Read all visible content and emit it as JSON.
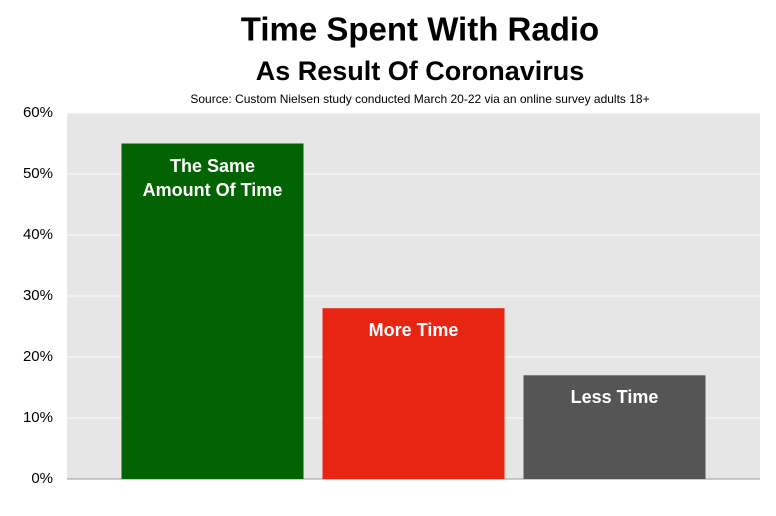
{
  "chart_data": {
    "type": "bar",
    "title": "Time Spent With Radio",
    "subtitle": "As Result Of Coronavirus",
    "source": "Source: Custom Nielsen study conducted March 20-22 via an online survey adults 18+",
    "categories": [
      "The Same Amount Of Time",
      "More Time",
      "Less Time"
    ],
    "values": [
      55,
      28,
      17
    ],
    "colors": [
      "#036303",
      "#e82412",
      "#555555"
    ],
    "ylim": [
      0,
      60
    ],
    "yticks": [
      {
        "value": 0,
        "label": "0%"
      },
      {
        "value": 10,
        "label": "10%"
      },
      {
        "value": 20,
        "label": "20%"
      },
      {
        "value": 30,
        "label": "30%"
      },
      {
        "value": 40,
        "label": "40%"
      },
      {
        "value": 50,
        "label": "50%"
      },
      {
        "value": 60,
        "label": "60%"
      }
    ],
    "grid": true
  }
}
